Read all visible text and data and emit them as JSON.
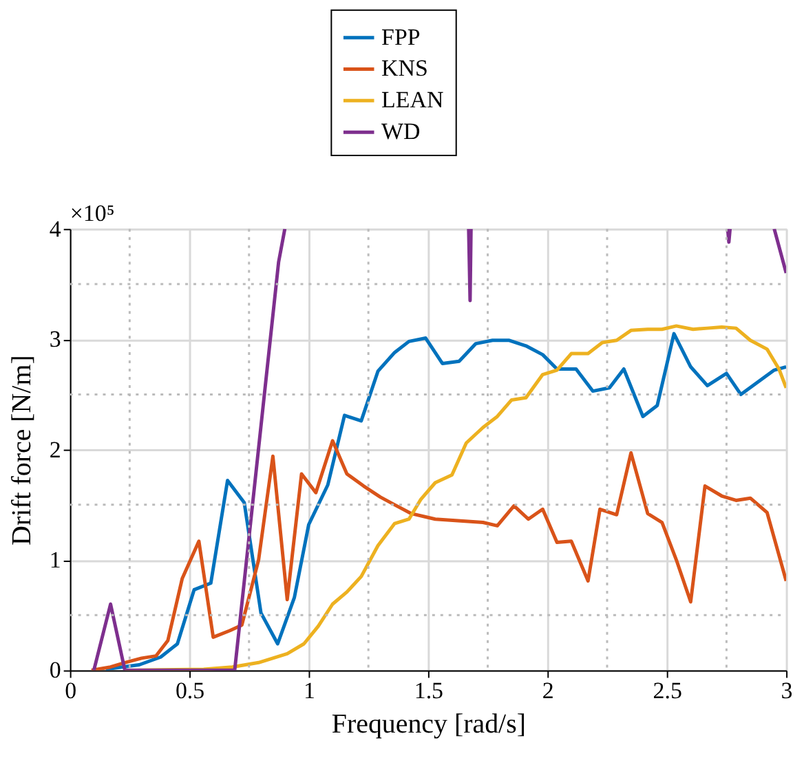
{
  "chart_data": {
    "type": "line",
    "xlabel": "Frequency [rad/s]",
    "ylabel": "Drift force [N/m]",
    "annotations": [
      "×10⁵"
    ],
    "xlim": [
      0,
      3
    ],
    "ylim": [
      0,
      4
    ],
    "xticks": [
      0,
      {
        "value": 0.25,
        "label": null
      },
      0.5,
      {
        "value": 0.75,
        "label": null
      },
      1,
      {
        "value": 1.25,
        "label": null
      },
      1.5,
      {
        "value": 1.75,
        "label": null
      },
      2,
      {
        "value": 2.25,
        "label": null
      },
      2.5,
      {
        "value": 2.75,
        "label": null
      },
      3
    ],
    "yticks": [
      0,
      {
        "value": 0.5,
        "label": null
      },
      1,
      {
        "value": 1.5,
        "label": null
      },
      2,
      {
        "value": 2.5,
        "label": null
      },
      3,
      {
        "value": 3.5,
        "label": null
      },
      4
    ],
    "grid": true,
    "legend": "top",
    "line_style": "solid",
    "marker": "none",
    "series": [
      {
        "name": "FPP",
        "color": "#0072bd",
        "x": [
          0.15,
          0.29,
          0.38,
          0.45,
          0.52,
          0.59,
          0.66,
          0.73,
          0.8,
          0.87,
          0.94,
          1.0,
          1.08,
          1.15,
          1.22,
          1.29,
          1.36,
          1.42,
          1.49,
          1.56,
          1.63,
          1.7,
          1.77,
          1.84,
          1.91,
          1.98,
          2.04,
          2.12,
          2.19,
          2.26,
          2.32,
          2.4,
          2.46,
          2.53,
          2.6,
          2.67,
          2.75,
          2.81,
          2.88,
          2.95,
          3.0
        ],
        "values": [
          0.01,
          0.05,
          0.12,
          0.24,
          0.73,
          0.79,
          1.72,
          1.52,
          0.52,
          0.24,
          0.66,
          1.32,
          1.68,
          2.31,
          2.26,
          2.71,
          2.88,
          2.98,
          3.01,
          2.78,
          2.8,
          2.96,
          2.99,
          2.99,
          2.94,
          2.86,
          2.73,
          2.73,
          2.53,
          2.56,
          2.73,
          2.3,
          2.4,
          3.05,
          2.75,
          2.58,
          2.69,
          2.5,
          2.61,
          2.72,
          2.75
        ]
      },
      {
        "name": "KNS",
        "color": "#d95319",
        "x": [
          0.09,
          0.17,
          0.23,
          0.3,
          0.36,
          0.41,
          0.47,
          0.54,
          0.6,
          0.67,
          0.72,
          0.79,
          0.85,
          0.91,
          0.97,
          1.03,
          1.1,
          1.16,
          1.23,
          1.3,
          1.36,
          1.43,
          1.49,
          1.53,
          1.73,
          1.79,
          1.86,
          1.92,
          1.98,
          2.04,
          2.1,
          2.17,
          2.22,
          2.29,
          2.35,
          2.42,
          2.48,
          2.54,
          2.6,
          2.66,
          2.73,
          2.79,
          2.85,
          2.92,
          3.0
        ],
        "values": [
          0,
          0.03,
          0.07,
          0.11,
          0.13,
          0.27,
          0.83,
          1.17,
          0.3,
          0.36,
          0.41,
          1.0,
          1.94,
          0.64,
          1.78,
          1.61,
          2.08,
          1.78,
          1.67,
          1.57,
          1.5,
          1.42,
          1.39,
          1.37,
          1.34,
          1.31,
          1.49,
          1.37,
          1.46,
          1.16,
          1.17,
          0.81,
          1.46,
          1.41,
          1.97,
          1.42,
          1.34,
          1.0,
          0.62,
          1.67,
          1.58,
          1.54,
          1.56,
          1.43,
          0.81
        ]
      },
      {
        "name": "LEAN",
        "color": "#edb120",
        "x": [
          0.23,
          0.56,
          0.68,
          0.79,
          0.91,
          0.98,
          1.04,
          1.1,
          1.16,
          1.22,
          1.29,
          1.36,
          1.42,
          1.47,
          1.53,
          1.6,
          1.66,
          1.73,
          1.79,
          1.85,
          1.91,
          1.98,
          2.04,
          2.1,
          2.17,
          2.23,
          2.29,
          2.35,
          2.42,
          2.48,
          2.54,
          2.61,
          2.67,
          2.73,
          2.79,
          2.85,
          2.92,
          2.97,
          3.0
        ],
        "values": [
          0,
          0.01,
          0.03,
          0.07,
          0.15,
          0.24,
          0.4,
          0.6,
          0.71,
          0.85,
          1.13,
          1.33,
          1.37,
          1.55,
          1.7,
          1.77,
          2.06,
          2.2,
          2.3,
          2.45,
          2.47,
          2.68,
          2.72,
          2.87,
          2.87,
          2.97,
          2.99,
          3.08,
          3.09,
          3.09,
          3.12,
          3.09,
          3.1,
          3.11,
          3.1,
          2.99,
          2.91,
          2.73,
          2.56
        ]
      },
      {
        "name": "WD",
        "color": "#7e2f8e",
        "x": [
          0.1,
          0.17,
          0.23,
          0.69,
          0.874,
          0.9,
          1.2,
          1.67,
          1.676,
          1.68,
          2.0,
          2.755,
          2.76,
          2.765,
          2.9,
          2.95,
          3.0
        ],
        "values": [
          0,
          0.6,
          0,
          0,
          3.7,
          4,
          null,
          4,
          3.35,
          4,
          null,
          4,
          3.88,
          4,
          null,
          4,
          3.6
        ]
      }
    ]
  }
}
